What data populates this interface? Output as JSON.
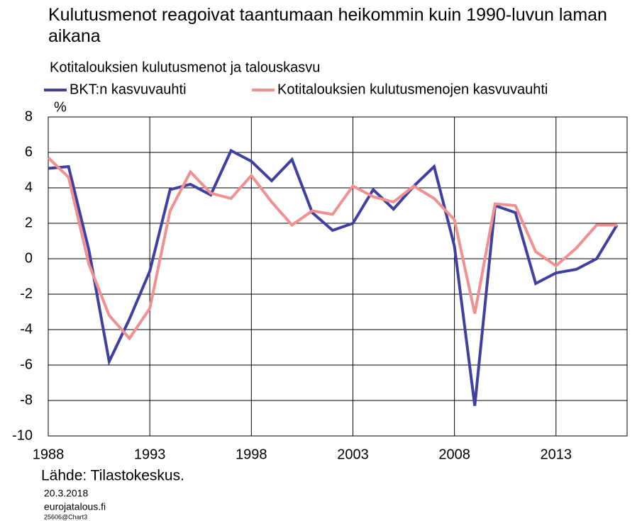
{
  "chart_data": {
    "type": "line",
    "title": "Kulutusmenot reagoivat taantumaan heikommin kuin 1990-luvun laman aikana",
    "subtitle": "Kotitalouksien kulutusmenot ja talouskasvu",
    "y_label": "%",
    "source": "Lähde: Tilastokeskus.",
    "date": "20.3.2018",
    "site": "eurojatalous.fi",
    "chart_id": "25606@Chart3",
    "x": [
      1988,
      1989,
      1990,
      1991,
      1992,
      1993,
      1994,
      1995,
      1996,
      1997,
      1998,
      1999,
      2000,
      2001,
      2002,
      2003,
      2004,
      2005,
      2006,
      2007,
      2008,
      2009,
      2010,
      2011,
      2012,
      2013,
      2014,
      2015,
      2016
    ],
    "series": [
      {
        "name": "BKT:n kasvuvauhti",
        "color": "#4040a0",
        "values": [
          5.1,
          5.2,
          0.5,
          -5.8,
          -3.4,
          -0.7,
          3.9,
          4.2,
          3.6,
          6.1,
          5.5,
          4.4,
          5.6,
          2.6,
          1.6,
          2.0,
          3.9,
          2.8,
          4.1,
          5.2,
          0.7,
          -8.3,
          3.0,
          2.6,
          -1.4,
          -0.8,
          -0.6,
          0.0,
          1.9
        ]
      },
      {
        "name": "Kotitalouksien kulutusmenojen kasvuvauhti",
        "color": "#f09090",
        "values": [
          5.7,
          4.6,
          -0.3,
          -3.2,
          -4.5,
          -2.8,
          2.7,
          4.9,
          3.7,
          3.4,
          4.7,
          3.2,
          1.9,
          2.7,
          2.5,
          4.1,
          3.5,
          3.2,
          4.1,
          3.4,
          2.2,
          -3.1,
          3.1,
          3.0,
          0.4,
          -0.4,
          0.6,
          1.9,
          1.9
        ]
      }
    ],
    "xlim": [
      1988,
      2016.5
    ],
    "xticks": [
      1988,
      1993,
      1998,
      2003,
      2008,
      2013
    ],
    "ylim": [
      -10,
      8
    ],
    "yticks": [
      -10,
      -8,
      -6,
      -4,
      -2,
      0,
      2,
      4,
      6,
      8
    ],
    "grid": true
  }
}
